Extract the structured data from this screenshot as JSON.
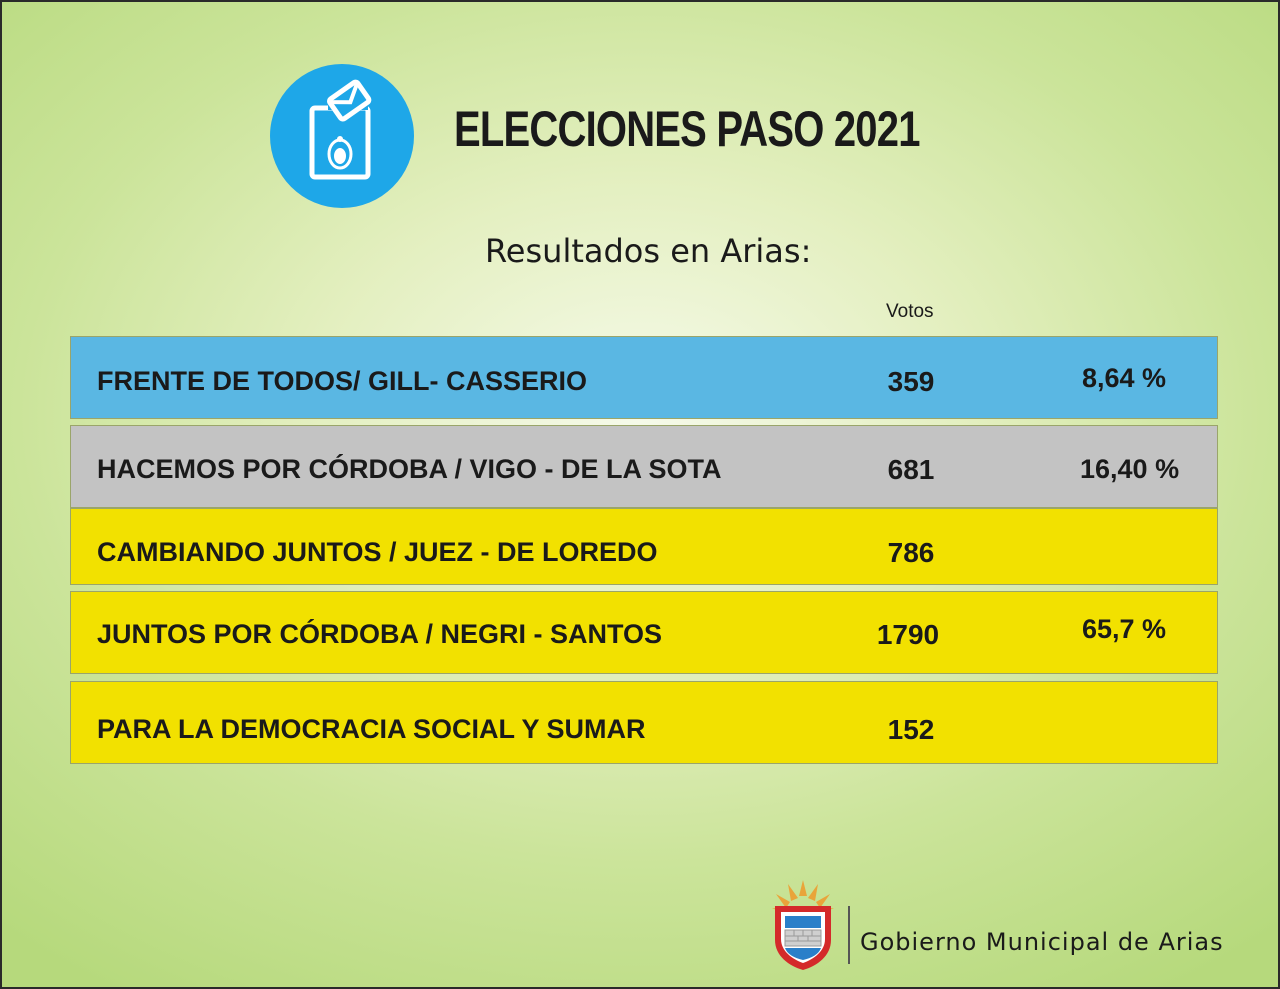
{
  "header": {
    "title": "ELECCIONES PASO 2021",
    "subtitle": "Resultados en Arias:"
  },
  "table": {
    "votes_header": "Votos",
    "rows": [
      {
        "name": "FRENTE DE TODOS/ GILL- CASSERIO",
        "votes": "359",
        "percent": "8,64 %",
        "color": "#5ab7e3"
      },
      {
        "name": "HACEMOS POR CÓRDOBA / VIGO - DE LA SOTA",
        "votes": "681",
        "percent": "16,40 %",
        "color": "#c3c3c3"
      },
      {
        "name": "CAMBIANDO JUNTOS / JUEZ - DE LOREDO",
        "votes": "786",
        "percent": "",
        "color": "#f2e100"
      },
      {
        "name": "JUNTOS POR CÓRDOBA / NEGRI - SANTOS",
        "votes": "1790",
        "percent": "65,7 %",
        "color": "#f2e100"
      },
      {
        "name": "PARA LA DEMOCRACIA SOCIAL Y SUMAR",
        "votes": "152",
        "percent": "",
        "color": "#f2e100"
      }
    ]
  },
  "footer": {
    "org_name": "Gobierno Municipal de Arias",
    "logo_icon": "municipal-shield-icon"
  },
  "colors": {
    "icon_blue": "#1ea7e8",
    "background_green": "#b6d97c"
  }
}
